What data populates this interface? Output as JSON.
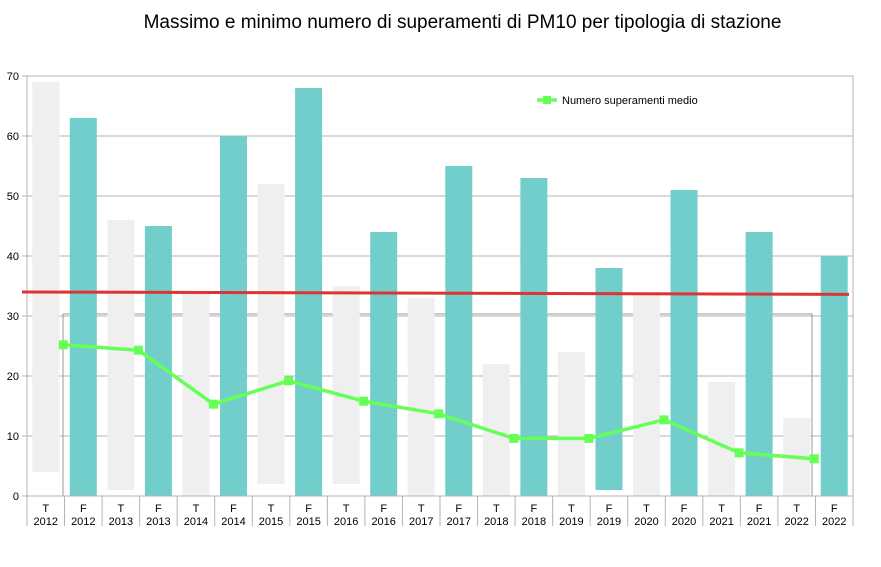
{
  "chart_data": {
    "type": "bar",
    "title": "Massimo e minimo numero di superamenti di PM10 per tipologia di stazione",
    "ylim": [
      0,
      70
    ],
    "yticks": [
      0,
      10,
      20,
      30,
      40,
      50,
      60,
      70
    ],
    "grid": true,
    "categories": [
      {
        "type": "T",
        "year": "2012"
      },
      {
        "type": "F",
        "year": "2012"
      },
      {
        "type": "T",
        "year": "2013"
      },
      {
        "type": "F",
        "year": "2013"
      },
      {
        "type": "T",
        "year": "2014"
      },
      {
        "type": "F",
        "year": "2014"
      },
      {
        "type": "T",
        "year": "2015"
      },
      {
        "type": "F",
        "year": "2015"
      },
      {
        "type": "T",
        "year": "2016"
      },
      {
        "type": "F",
        "year": "2016"
      },
      {
        "type": "T",
        "year": "2017"
      },
      {
        "type": "F",
        "year": "2017"
      },
      {
        "type": "T",
        "year": "2018"
      },
      {
        "type": "F",
        "year": "2018"
      },
      {
        "type": "T",
        "year": "2019"
      },
      {
        "type": "F",
        "year": "2019"
      },
      {
        "type": "T",
        "year": "2020"
      },
      {
        "type": "F",
        "year": "2020"
      },
      {
        "type": "T",
        "year": "2021"
      },
      {
        "type": "F",
        "year": "2021"
      },
      {
        "type": "T",
        "year": "2022"
      },
      {
        "type": "F",
        "year": "2022"
      }
    ],
    "ranges": [
      [
        4,
        69
      ],
      [
        0,
        63
      ],
      [
        1,
        46
      ],
      [
        0,
        45
      ],
      [
        0,
        34
      ],
      [
        0,
        60
      ],
      [
        2,
        52
      ],
      [
        0,
        68
      ],
      [
        2,
        35
      ],
      [
        0,
        44
      ],
      [
        0,
        33
      ],
      [
        0,
        55
      ],
      [
        0,
        22
      ],
      [
        0,
        53
      ],
      [
        0,
        24
      ],
      [
        1,
        38
      ],
      [
        0,
        34
      ],
      [
        0,
        51
      ],
      [
        0,
        19
      ],
      [
        0,
        44
      ],
      [
        0,
        13
      ],
      [
        0,
        40
      ]
    ],
    "legend": {
      "label": "Numero superamenti medio",
      "position": "top-right"
    },
    "average_series": {
      "name": "Numero superamenti medio",
      "points": [
        {
          "index": 1,
          "value": 25.2
        },
        {
          "index": 3,
          "value": 24.3
        },
        {
          "index": 5,
          "value": 15.3
        },
        {
          "index": 7,
          "value": 19.2
        },
        {
          "index": 9,
          "value": 15.8
        },
        {
          "index": 11,
          "value": 13.7
        },
        {
          "index": 13,
          "value": 9.6
        },
        {
          "index": 15,
          "value": 9.6
        },
        {
          "index": 17,
          "value": 12.7
        },
        {
          "index": 19,
          "value": 7.2
        },
        {
          "index": 21,
          "value": 6.2
        }
      ]
    },
    "limit_line": {
      "start": 34,
      "end": 33.6
    },
    "colors": {
      "T": "#efefef",
      "F": "#72cecb",
      "average": "#66ff55",
      "limit": "#dd3333",
      "grid": "#b3b3b3"
    }
  }
}
